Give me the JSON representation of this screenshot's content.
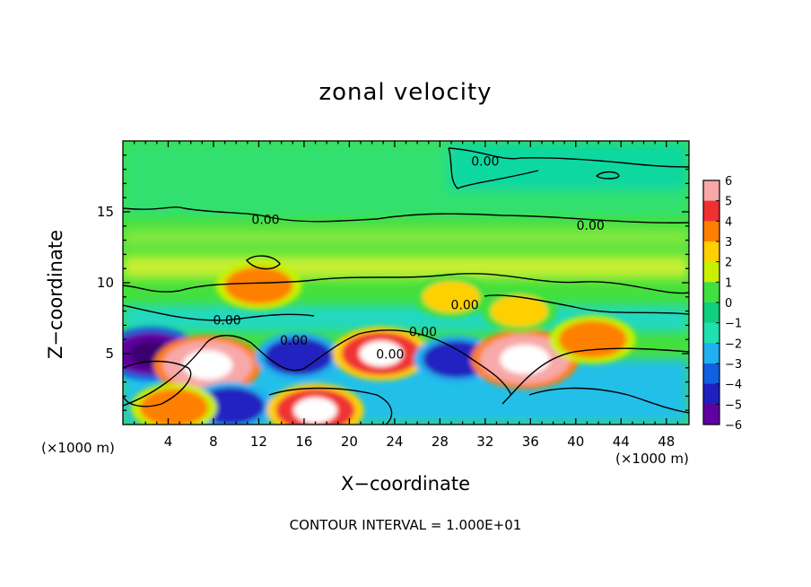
{
  "chart_data": {
    "type": "heatmap",
    "title": "zonal velocity",
    "xlabel": "X−coordinate",
    "ylabel": "Z−coordinate",
    "x_unit_left": "(×1000 m)",
    "x_unit_right": "(×1000 m)",
    "footer": "CONTOUR INTERVAL = 1.000E+01",
    "xlim": [
      0,
      50
    ],
    "ylim": [
      0,
      20
    ],
    "x_ticks": [
      "4",
      "8",
      "12",
      "16",
      "20",
      "24",
      "28",
      "32",
      "36",
      "40",
      "44",
      "48"
    ],
    "y_ticks": [
      "5",
      "10",
      "15"
    ],
    "colorbar": {
      "range": [
        -6,
        6
      ],
      "ticks": [
        "6",
        "5",
        "4",
        "3",
        "2",
        "1",
        "0",
        "−1",
        "−2",
        "−3",
        "−4",
        "−5",
        "−6"
      ],
      "colors": [
        "#f7a8a8",
        "#f03030",
        "#ff7f00",
        "#ffd000",
        "#c8f000",
        "#40e040",
        "#10d080",
        "#20e0b0",
        "#20b0f0",
        "#1060e0",
        "#2020c0",
        "#6000a0"
      ]
    },
    "contour_labels": [
      {
        "text": "0.00",
        "x": 32,
        "z": 18.5
      },
      {
        "text": "0.00",
        "x": 12.6,
        "z": 14.4
      },
      {
        "text": "0.00",
        "x": 41.3,
        "z": 14.0
      },
      {
        "text": "0.00",
        "x": 30.2,
        "z": 8.4
      },
      {
        "text": "0.00",
        "x": 9.2,
        "z": 7.3
      },
      {
        "text": "0.00",
        "x": 15.1,
        "z": 5.9
      },
      {
        "text": "0.00",
        "x": 26.5,
        "z": 6.5
      },
      {
        "text": "0.00",
        "x": 23.6,
        "z": 4.9
      }
    ],
    "features": [
      {
        "x": 2.5,
        "z": 5.0,
        "value": -5
      },
      {
        "x": 7.5,
        "z": 4.2,
        "value": 6
      },
      {
        "x": 9.5,
        "z": 1.3,
        "value": -4
      },
      {
        "x": 15.5,
        "z": 4.8,
        "value": -4
      },
      {
        "x": 17.0,
        "z": 1.0,
        "value": 5
      },
      {
        "x": 22.8,
        "z": 5.0,
        "value": 5
      },
      {
        "x": 29.5,
        "z": 4.6,
        "value": -4
      },
      {
        "x": 35.5,
        "z": 4.6,
        "value": 6
      },
      {
        "x": 41.5,
        "z": 6.0,
        "value": 4
      },
      {
        "x": 4.5,
        "z": 1.2,
        "value": 4
      },
      {
        "x": 12.0,
        "z": 9.8,
        "value": 4
      },
      {
        "x": 29.0,
        "z": 9.0,
        "value": 3
      },
      {
        "x": 35.0,
        "z": 8.0,
        "value": 3
      }
    ]
  }
}
